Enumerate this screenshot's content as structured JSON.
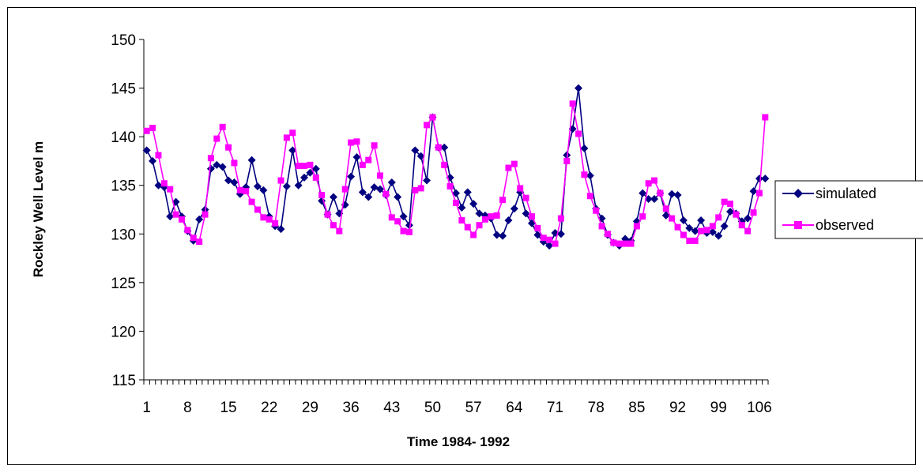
{
  "chart_data": {
    "type": "line",
    "title": "",
    "xlabel": "Time 1984- 1992",
    "ylabel": "Rockley Well Level m",
    "ylim": [
      115,
      150
    ],
    "yticks": [
      115,
      120,
      125,
      130,
      135,
      140,
      145,
      150
    ],
    "xlim": [
      1,
      107
    ],
    "xtick_labels": [
      1,
      8,
      15,
      22,
      29,
      36,
      43,
      50,
      57,
      64,
      71,
      78,
      85,
      92,
      99,
      106
    ],
    "grid": false,
    "legend_position": "right",
    "series": [
      {
        "name": "simulated",
        "color": "#000080",
        "marker": "diamond",
        "x": [
          1,
          2,
          3,
          4,
          5,
          6,
          7,
          8,
          9,
          10,
          11,
          12,
          13,
          14,
          15,
          16,
          17,
          18,
          19,
          20,
          21,
          22,
          23,
          24,
          25,
          26,
          27,
          28,
          29,
          30,
          31,
          32,
          33,
          34,
          35,
          36,
          37,
          38,
          39,
          40,
          41,
          42,
          43,
          44,
          45,
          46,
          47,
          48,
          49,
          50,
          51,
          52,
          53,
          54,
          55,
          56,
          57,
          58,
          59,
          60,
          61,
          62,
          63,
          64,
          65,
          66,
          67,
          68,
          69,
          70,
          71,
          72,
          73,
          74,
          75,
          76,
          77,
          78,
          79,
          80,
          81,
          82,
          83,
          84,
          85,
          86,
          87,
          88,
          89,
          90,
          91,
          92,
          93,
          94,
          95,
          96,
          97,
          98,
          99,
          100,
          101,
          102,
          103,
          104,
          105,
          106,
          107
        ],
        "values": [
          138.6,
          137.5,
          135.0,
          134.8,
          131.8,
          133.3,
          131.8,
          130.3,
          129.3,
          131.5,
          132.5,
          136.7,
          137.1,
          136.9,
          135.5,
          135.3,
          134.1,
          134.8,
          137.6,
          134.9,
          134.5,
          131.8,
          130.8,
          130.5,
          134.9,
          138.6,
          135.0,
          135.8,
          136.3,
          136.7,
          133.4,
          132.0,
          133.8,
          132.1,
          133.0,
          135.9,
          137.9,
          134.3,
          133.8,
          134.8,
          134.6,
          134.0,
          135.3,
          133.8,
          131.8,
          130.9,
          138.6,
          138.0,
          135.5,
          142.0,
          138.9,
          138.9,
          135.8,
          134.2,
          132.7,
          134.3,
          133.1,
          132.1,
          131.9,
          131.6,
          129.9,
          129.8,
          131.4,
          132.6,
          134.3,
          132.1,
          131.1,
          129.9,
          129.2,
          128.8,
          130.1,
          130.0,
          138.1,
          140.8,
          145.0,
          138.8,
          136.0,
          132.6,
          131.6,
          129.9,
          129.1,
          128.8,
          129.5,
          129.3,
          131.3,
          134.2,
          133.6,
          133.6,
          134.2,
          131.9,
          134.1,
          134.0,
          131.4,
          130.6,
          130.3,
          131.4,
          130.1,
          130.2,
          129.8,
          130.8,
          132.3,
          132.1,
          131.3,
          131.6,
          134.4,
          135.7,
          135.7
        ]
      },
      {
        "name": "observed",
        "color": "#FF00FF",
        "marker": "square",
        "x": [
          1,
          2,
          3,
          4,
          5,
          6,
          7,
          8,
          9,
          10,
          11,
          12,
          13,
          14,
          15,
          16,
          17,
          18,
          19,
          20,
          21,
          22,
          23,
          24,
          25,
          26,
          27,
          28,
          29,
          30,
          31,
          32,
          33,
          34,
          35,
          36,
          37,
          38,
          39,
          40,
          41,
          42,
          43,
          44,
          45,
          46,
          47,
          48,
          49,
          50,
          51,
          52,
          53,
          54,
          55,
          56,
          57,
          58,
          59,
          60,
          61,
          62,
          63,
          64,
          65,
          66,
          67,
          68,
          69,
          70,
          71,
          72,
          73,
          74,
          75,
          76,
          77,
          78,
          79,
          80,
          81,
          82,
          83,
          84,
          85,
          86,
          87,
          88,
          89,
          90,
          91,
          92,
          93,
          94,
          95,
          96,
          97,
          98,
          99,
          100,
          101,
          102,
          103,
          104,
          105,
          106,
          107
        ],
        "values": [
          140.6,
          140.9,
          138.1,
          135.2,
          134.6,
          132.0,
          131.5,
          130.4,
          129.6,
          129.2,
          132.0,
          137.8,
          139.8,
          141.0,
          138.9,
          137.3,
          134.5,
          134.4,
          133.3,
          132.5,
          131.7,
          131.5,
          131.1,
          135.5,
          139.9,
          140.4,
          137.0,
          137.0,
          137.1,
          135.8,
          134.0,
          132.0,
          130.9,
          130.3,
          134.6,
          139.4,
          139.5,
          137.1,
          137.6,
          139.1,
          136.0,
          134.1,
          131.7,
          131.3,
          130.3,
          130.2,
          134.5,
          134.7,
          141.2,
          142.0,
          138.9,
          137.1,
          134.9,
          133.2,
          131.4,
          130.7,
          129.9,
          130.9,
          131.5,
          131.8,
          131.9,
          133.5,
          136.8,
          137.2,
          134.7,
          133.7,
          131.8,
          130.6,
          129.6,
          129.4,
          129.0,
          131.6,
          137.5,
          143.4,
          140.3,
          136.1,
          133.9,
          132.4,
          130.8,
          130.0,
          129.1,
          129.0,
          129.0,
          129.0,
          130.8,
          131.8,
          135.2,
          135.5,
          134.2,
          132.6,
          131.6,
          130.7,
          129.9,
          129.3,
          129.3,
          130.3,
          130.4,
          130.8,
          131.7,
          133.3,
          133.1,
          132.0,
          130.9,
          130.3,
          132.2,
          134.2,
          142.0
        ]
      }
    ]
  }
}
